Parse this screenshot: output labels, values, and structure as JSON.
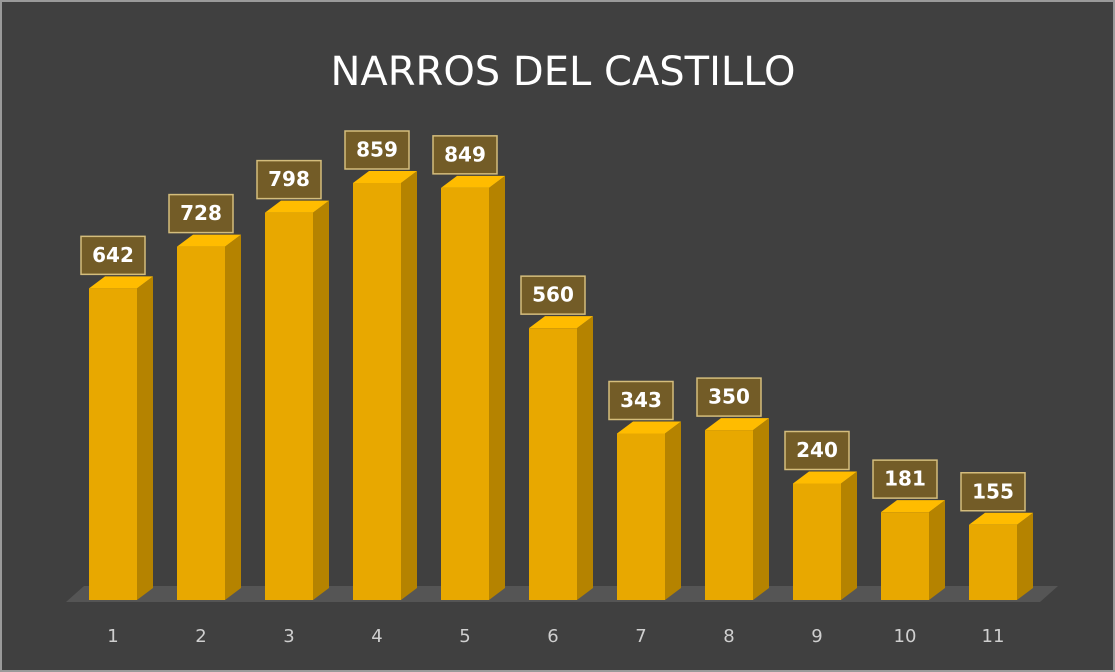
{
  "chart_data": {
    "type": "bar",
    "title": "NARROS DEL CASTILLO",
    "categories": [
      "1",
      "2",
      "3",
      "4",
      "5",
      "6",
      "7",
      "8",
      "9",
      "10",
      "11"
    ],
    "values": [
      642,
      728,
      798,
      859,
      849,
      560,
      343,
      350,
      240,
      181,
      155
    ],
    "color": "#e8a800"
  }
}
